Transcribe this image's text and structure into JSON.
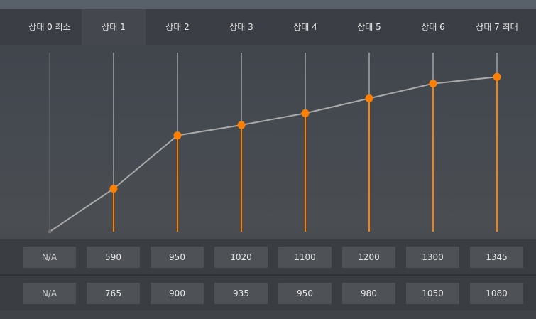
{
  "states": [
    {
      "label": "상태 0 최소",
      "memory": "N/A",
      "core": "N/A"
    },
    {
      "label": "상태 1",
      "memory": "590",
      "core": "765"
    },
    {
      "label": "상태 2",
      "memory": "950",
      "core": "900"
    },
    {
      "label": "상태 3",
      "memory": "1020",
      "core": "935"
    },
    {
      "label": "상태 4",
      "memory": "1100",
      "core": "950"
    },
    {
      "label": "상태 5",
      "memory": "1200",
      "core": "980"
    },
    {
      "label": "상태 6",
      "memory": "1300",
      "core": "1050"
    },
    {
      "label": "상태 7 최대",
      "memory": "1345",
      "core": "1080"
    }
  ],
  "chart_data": {
    "type": "line",
    "categories": [
      "상태 0 최소",
      "상태 1",
      "상태 2",
      "상태 3",
      "상태 4",
      "상태 5",
      "상태 6",
      "상태 7 최대"
    ],
    "series": [
      {
        "values": [
          null,
          590,
          950,
          1020,
          1100,
          1200,
          1300,
          1345
        ]
      }
    ],
    "ylim": [
      300,
      1500
    ],
    "point_color": "#ff7f00",
    "line_color": "#a9a9a9"
  },
  "colors": {
    "accent": "#ff7f00",
    "background": "#464a50"
  }
}
